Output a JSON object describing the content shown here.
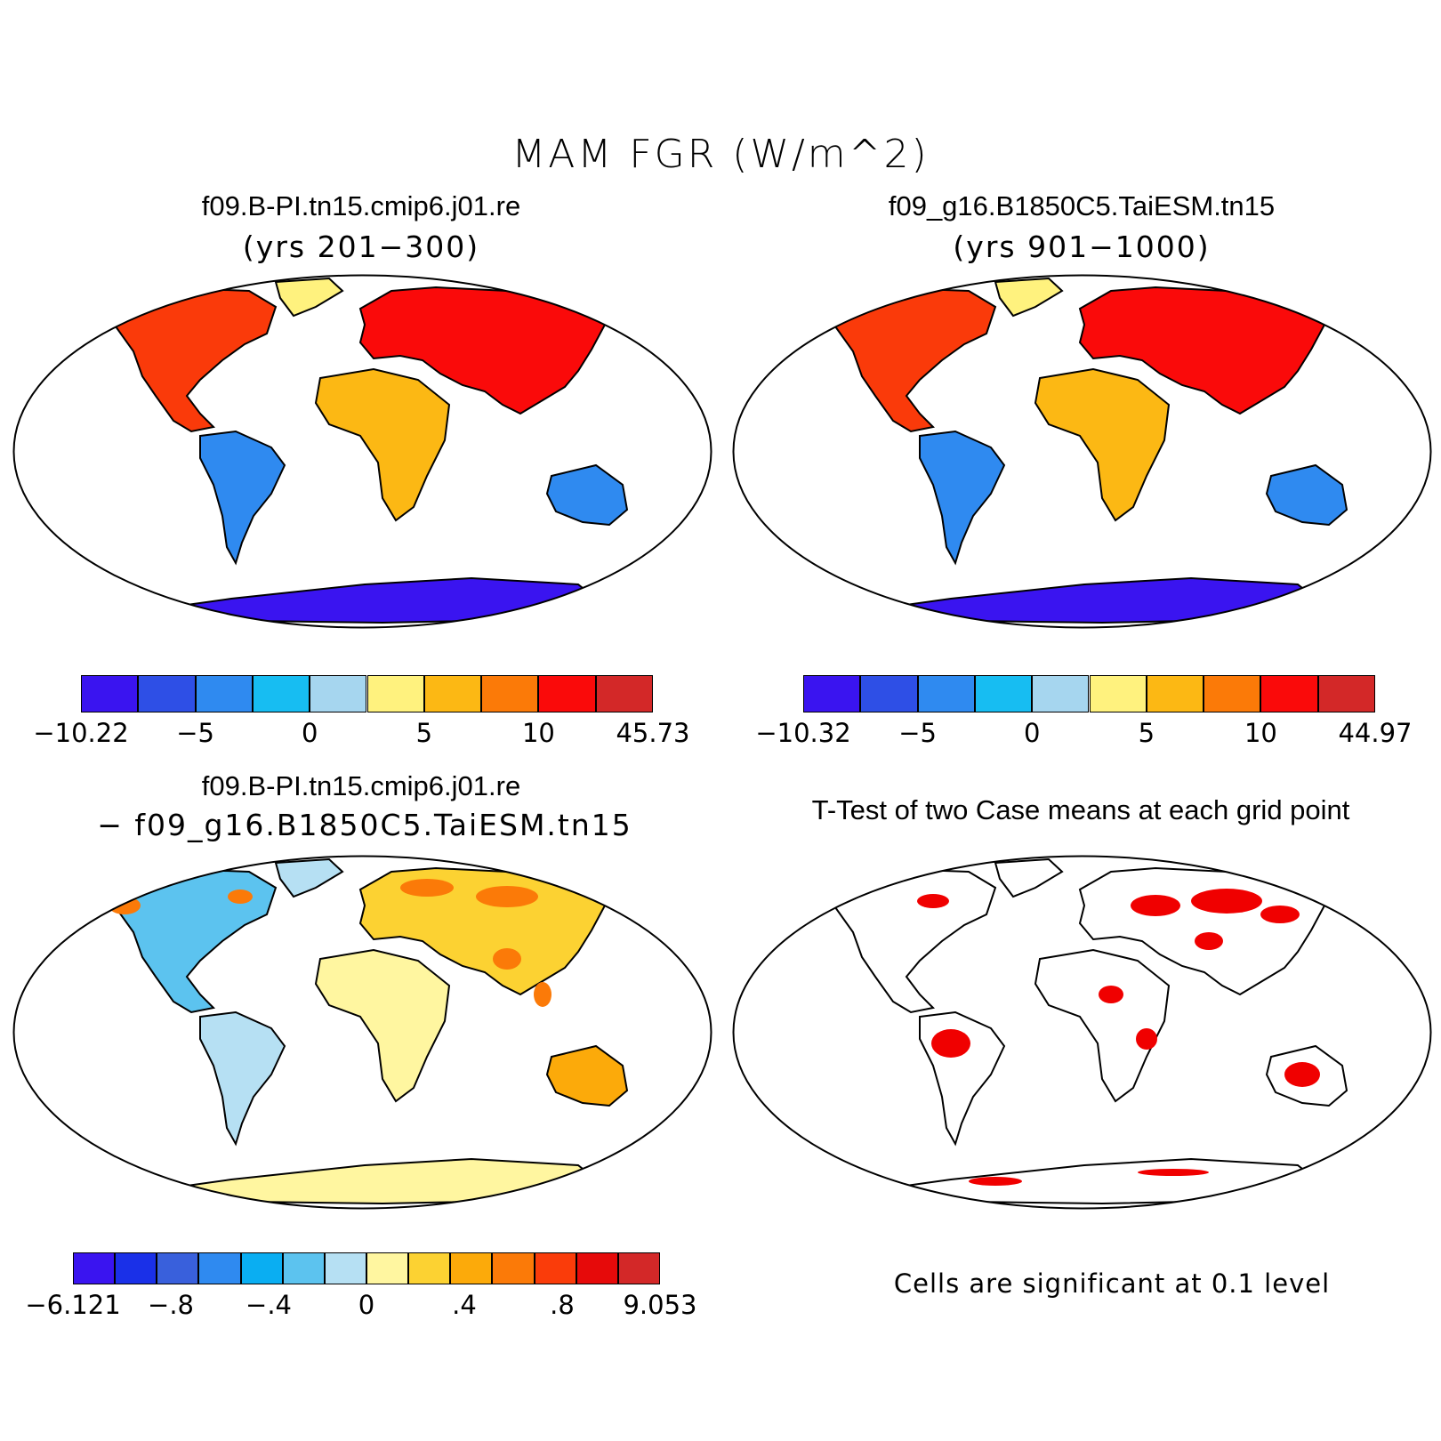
{
  "title": "MAM FGR (W/m^2)",
  "panels": {
    "top_left": {
      "case": "f09.B-PI.tn15.cmip6.j01.re",
      "years": "(yrs 201−300)",
      "colorbar": {
        "colors": [
          "#3a14f0",
          "#2e4fe6",
          "#2f8af0",
          "#17bdf2",
          "#a6d6ef",
          "#fff27e",
          "#fcb814",
          "#fb7a08",
          "#fa0a0a",
          "#d32828"
        ],
        "labels": [
          "−10.22",
          "−5",
          "0",
          "5",
          "10",
          "45.73"
        ]
      }
    },
    "top_right": {
      "case": "f09_g16.B1850C5.TaiESM.tn15",
      "years": "(yrs 901−1000)",
      "colorbar": {
        "colors": [
          "#3a14f0",
          "#2e4fe6",
          "#2f8af0",
          "#17bdf2",
          "#a6d6ef",
          "#fff27e",
          "#fcb814",
          "#fb7a08",
          "#fa0a0a",
          "#d32828"
        ],
        "labels": [
          "−10.32",
          "−5",
          "0",
          "5",
          "10",
          "44.97"
        ]
      }
    },
    "bottom_left": {
      "case": "f09.B-PI.tn15.cmip6.j01.re",
      "minus_case": "− f09_g16.B1850C5.TaiESM.tn15",
      "colorbar": {
        "colors": [
          "#3a14f0",
          "#1a30e8",
          "#3960dc",
          "#2f8af0",
          "#0aaef2",
          "#5cc3ef",
          "#b6e0f3",
          "#fff6a0",
          "#fcd232",
          "#fcaa0a",
          "#fb7a08",
          "#fa3c0a",
          "#e60a0a",
          "#d32828"
        ],
        "labels": [
          "−6.121",
          "−.8",
          "−.4",
          "0",
          ".4",
          ".8",
          "9.053"
        ]
      }
    },
    "bottom_right": {
      "title": "T-Test of two Case means at each grid point",
      "note": "Cells are significant at 0.1 level"
    }
  },
  "map_colors": {
    "land_outline": "#000000",
    "ocean": "#ffffff"
  }
}
